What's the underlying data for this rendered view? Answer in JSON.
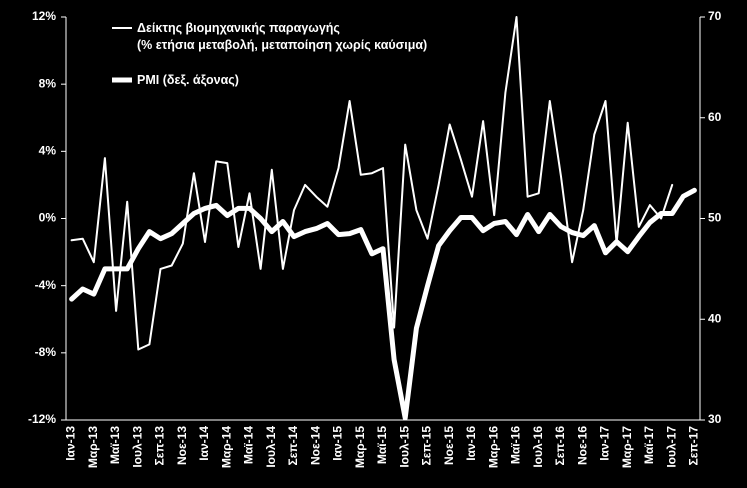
{
  "chart_data": {
    "type": "line",
    "categories": [
      "Ιαν-13",
      null,
      "Μαρ-13",
      null,
      "Μαϊ-13",
      null,
      "Ιουλ-13",
      null,
      "Σεπ-13",
      null,
      "Νοε-13",
      null,
      "Ιαν-14",
      null,
      "Μαρ-14",
      null,
      "Μαϊ-14",
      null,
      "Ιουλ-14",
      null,
      "Σεπ-14",
      null,
      "Νοε-14",
      null,
      "Ιαν-15",
      null,
      "Μαρ-15",
      null,
      "Μαϊ-15",
      null,
      "Ιουλ-15",
      null,
      "Σεπ-15",
      null,
      "Νοε-15",
      null,
      "Ιαν-16",
      null,
      "Μαρ-16",
      null,
      "Μαϊ-16",
      null,
      "Ιουλ-16",
      null,
      "Σεπ-16",
      null,
      "Νοε-16",
      null,
      "Ιαν-17",
      null,
      "Μαρ-17",
      null,
      "Μαϊ-17",
      null,
      "Ιουλ-17",
      null,
      "Σεπ-17"
    ],
    "series": [
      {
        "name": "Δείκτης βιομηχανικής παραγωγής\n(% ετήσια μεταβολή, μεταποίηση χωρίς καύσιμα)",
        "color": "#ffffff",
        "width": 2,
        "values": [
          -1.3,
          -1.2,
          -2.6,
          3.6,
          -5.5,
          1.0,
          -7.8,
          -7.5,
          -3.0,
          -2.8,
          -1.5,
          2.7,
          -1.4,
          3.4,
          3.3,
          -1.7,
          1.5,
          -3.0,
          2.9,
          -3.0,
          0.5,
          2.0,
          1.3,
          0.7,
          3.0,
          7.0,
          2.6,
          2.7,
          3.0,
          -6.5,
          4.4,
          0.5,
          -1.2,
          2.0,
          5.6,
          3.5,
          1.3,
          5.8,
          0.2,
          7.5,
          12.0,
          1.3,
          1.5,
          7.0,
          2.5,
          -2.6,
          0.5,
          5.0,
          7.0,
          -1.5,
          5.7,
          -0.5,
          0.8,
          0.0,
          2.0,
          null,
          null
        ]
      },
      {
        "name": "PMI (δεξ. άξονας)",
        "color": "#ffffff",
        "width": 5,
        "axis": "y2",
        "values": [
          42,
          43,
          42.5,
          45,
          45,
          45,
          47,
          48.7,
          48,
          48.5,
          49.5,
          50.5,
          51,
          51.3,
          50.3,
          51,
          51,
          50,
          48.7,
          49.7,
          48.2,
          48.7,
          49,
          49.5,
          48.4,
          48.5,
          48.9,
          46.5,
          47,
          36,
          30.2,
          39.1,
          43.3,
          47.3,
          48.8,
          50.1,
          50.1,
          48.8,
          49.5,
          49.7,
          48.4,
          50.4,
          48.7,
          50.4,
          49.2,
          48.6,
          48.3,
          49.3,
          46.6,
          47.7,
          46.7,
          48.2,
          49.6,
          50.5,
          50.5,
          52.2,
          52.8
        ]
      }
    ],
    "ylim": [
      -12,
      12
    ],
    "yticks": [
      {
        "value": -12,
        "label": "-12%"
      },
      {
        "value": -8,
        "label": "-8%"
      },
      {
        "value": -4,
        "label": "-4%"
      },
      {
        "value": 0,
        "label": "0%"
      },
      {
        "value": 4,
        "label": "4%"
      },
      {
        "value": 8,
        "label": "8%"
      },
      {
        "value": 12,
        "label": "12%"
      }
    ],
    "y2lim": [
      30,
      70
    ],
    "y2ticks": [
      30,
      40,
      50,
      60,
      70
    ]
  }
}
